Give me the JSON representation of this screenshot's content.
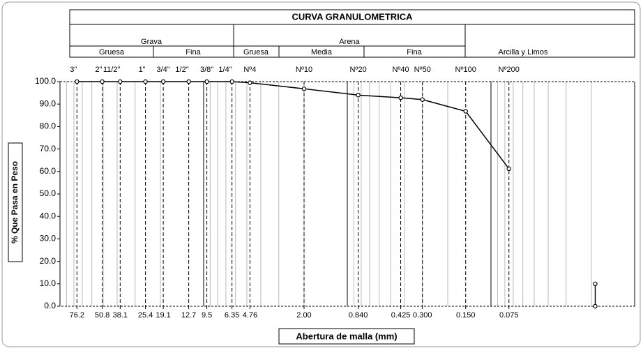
{
  "header": {
    "title": "CURVA GRANULOMETRICA",
    "grava": "Grava",
    "arena": "Arena",
    "grava_gruesa": "Gruesa",
    "grava_fina": "Fina",
    "arena_gruesa": "Gruesa",
    "arena_media": "Media",
    "arena_fina": "Fina",
    "finos": "Arcilla y Limos"
  },
  "chart_data": {
    "type": "line",
    "xlabel": "Abertura de malla (mm)",
    "ylabel": "% Que Pasa en Peso",
    "x": [
      76.2,
      50.8,
      38.1,
      25.4,
      19.1,
      12.7,
      9.5,
      6.35,
      4.76,
      2.0,
      0.84,
      0.425,
      0.3,
      0.15,
      0.075
    ],
    "sieves": [
      "3\"",
      "2\"",
      "11/2\"",
      "1\"",
      "3/4\"",
      "1/2\"",
      "3/8\"",
      "1/4\"",
      "Nº4",
      "Nº10",
      "Nº20",
      "Nº40",
      "Nº50",
      "Nº100",
      "Nº200"
    ],
    "series": [
      {
        "color": "#000000",
        "values": [
          100,
          100,
          100,
          100,
          100,
          100,
          100,
          100,
          99.5,
          96.8,
          94,
          92.8,
          92,
          86.8,
          61.2
        ]
      },
      {
        "color": "#000000",
        "x": [
          0.0188,
          0.0188
        ],
        "values": [
          0,
          10
        ]
      }
    ],
    "xscale": "log",
    "xlim": [
      100,
      0.01
    ],
    "xticks": [
      76.2,
      50.8,
      38.1,
      25.4,
      19.1,
      12.7,
      9.5,
      6.35,
      4.76,
      {
        "value": 2,
        "label": "2.00"
      },
      {
        "value": 0.84,
        "label": "0.840"
      },
      0.425,
      {
        "value": 0.3,
        "label": "0.300"
      },
      {
        "value": 0.15,
        "label": "0.150"
      },
      0.075
    ],
    "ylim": [
      0,
      100
    ],
    "yticks": [
      {
        "value": 0,
        "label": "0.0"
      },
      {
        "value": 10,
        "label": "10.0"
      },
      {
        "value": 20,
        "label": "20.0"
      },
      {
        "value": 30,
        "label": "30.0"
      },
      {
        "value": 40,
        "label": "40.0"
      },
      {
        "value": 50,
        "label": "50.0"
      },
      {
        "value": 60,
        "label": "60.0"
      },
      {
        "value": 70,
        "label": "70.0"
      },
      {
        "value": 80,
        "label": "80.0"
      },
      {
        "value": 90,
        "label": "90.0"
      },
      {
        "value": 100,
        "label": "100.0"
      }
    ],
    "grid": true
  }
}
